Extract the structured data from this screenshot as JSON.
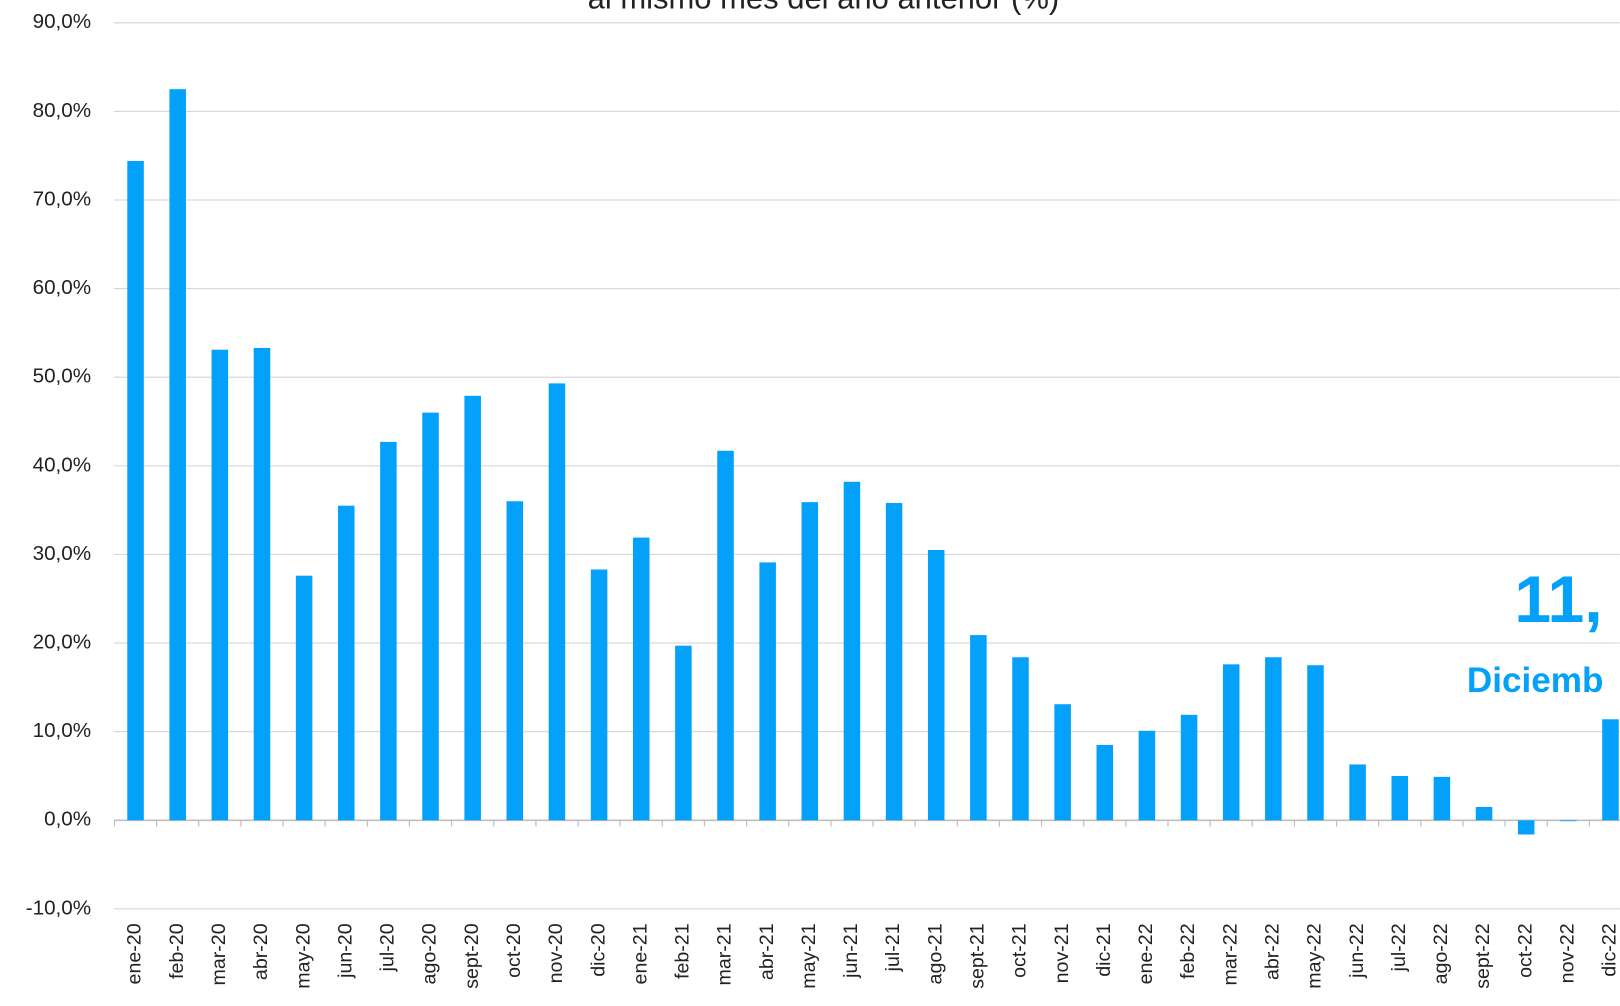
{
  "chart_data": {
    "type": "bar",
    "title": "al mismo mes del año anterior (%)",
    "categories": [
      "ene-20",
      "feb-20",
      "mar-20",
      "abr-20",
      "may-20",
      "jun-20",
      "jul-20",
      "ago-20",
      "sept-20",
      "oct-20",
      "nov-20",
      "dic-20",
      "ene-21",
      "feb-21",
      "mar-21",
      "abr-21",
      "may-21",
      "jun-21",
      "jul-21",
      "ago-21",
      "sept-21",
      "oct-21",
      "nov-21",
      "dic-21",
      "ene-22",
      "feb-22",
      "mar-22",
      "abr-22",
      "may-22",
      "jun-22",
      "jul-22",
      "ago-22",
      "sept-22",
      "oct-22",
      "nov-22",
      "dic-22"
    ],
    "values": [
      74.4,
      82.5,
      53.1,
      53.3,
      27.6,
      35.5,
      42.7,
      46.0,
      47.9,
      36.0,
      49.3,
      28.3,
      31.9,
      19.7,
      41.7,
      29.1,
      35.9,
      38.2,
      35.8,
      30.5,
      20.9,
      18.4,
      13.1,
      8.5,
      10.1,
      11.9,
      17.6,
      18.4,
      17.5,
      6.3,
      5.0,
      4.9,
      1.5,
      -1.6,
      -0.1,
      11.4
    ],
    "color": "#03a1fa",
    "ylim": [
      -10,
      90
    ],
    "yticks": [
      {
        "value": -10,
        "label": "-10,0%"
      },
      {
        "value": 0,
        "label": "0,0%"
      },
      {
        "value": 10,
        "label": "10,0%"
      },
      {
        "value": 20,
        "label": "20,0%"
      },
      {
        "value": 30,
        "label": "30,0%"
      },
      {
        "value": 40,
        "label": "40,0%"
      },
      {
        "value": 50,
        "label": "50,0%"
      },
      {
        "value": 60,
        "label": "60,0%"
      },
      {
        "value": 70,
        "label": "70,0%"
      },
      {
        "value": 80,
        "label": "80,0%"
      },
      {
        "value": 90,
        "label": "90,0%"
      }
    ],
    "grid": true,
    "annotations": [
      "11,",
      "Diciemb"
    ]
  }
}
